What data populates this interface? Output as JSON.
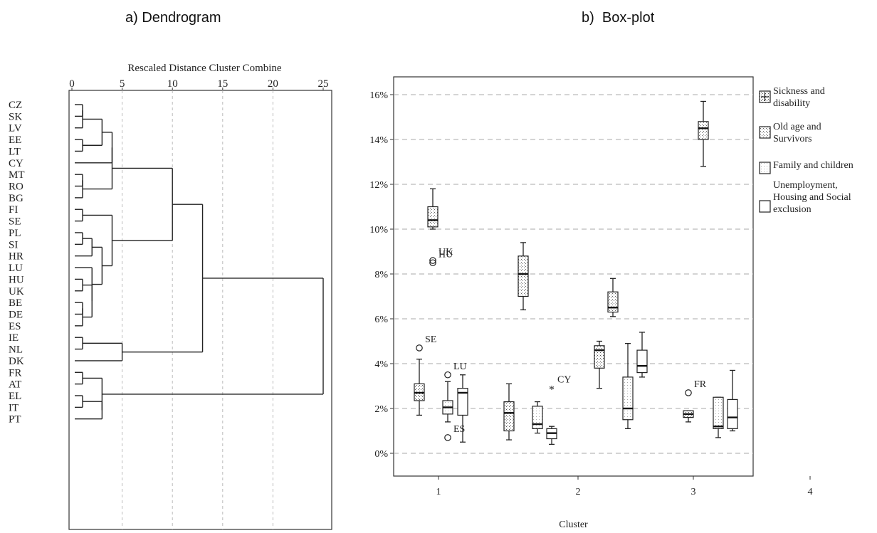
{
  "panels": {
    "a_title": "a) Dendrogram",
    "b_title": "b)  Box-plot"
  },
  "chart_data": [
    {
      "type": "dendrogram",
      "title": "a) Dendrogram",
      "axis_title": "Rescaled Distance Cluster Combine",
      "ticks": [
        "0",
        "5",
        "10",
        "15",
        "20",
        "25"
      ],
      "tick_values": [
        0,
        5,
        10,
        15,
        20,
        25
      ],
      "xlim": [
        0,
        25
      ],
      "grid": true,
      "leaves": [
        "CZ",
        "SK",
        "LV",
        "EE",
        "LT",
        "CY",
        "MT",
        "RO",
        "BG",
        "FI",
        "SE",
        "PL",
        "SI",
        "HR",
        "LU",
        "HU",
        "UK",
        "BE",
        "DE",
        "ES",
        "IE",
        "NL",
        "DK",
        "FR",
        "AT",
        "EL",
        "IT",
        "PT"
      ],
      "merges": [
        {
          "a": "CZ",
          "b": "SK",
          "h": 1.0
        },
        {
          "a": "EE",
          "b": "LT",
          "h": 1.0
        },
        {
          "a": "MT",
          "b": "RO",
          "h": 1.0
        },
        {
          "a": "FI",
          "b": "SE",
          "h": 1.0
        },
        {
          "a": "PL",
          "b": "SI",
          "h": 1.0
        },
        {
          "a": "HU",
          "b": "UK",
          "h": 1.0
        },
        {
          "a": "BE",
          "b": "DE",
          "h": 1.0
        },
        {
          "a": "IE",
          "b": "NL",
          "h": 1.0
        },
        {
          "a": "FR",
          "b": "AT",
          "h": 1.0
        },
        {
          "a": "EL",
          "b": "IT",
          "h": 1.0
        },
        {
          "a": "CZ+SK",
          "b": "LV",
          "h": 1.0
        },
        {
          "a": "MT+RO",
          "b": "BG",
          "h": 1.0
        },
        {
          "a": "PL+SI",
          "b": "HR",
          "h": 2.0
        },
        {
          "a": "BE+DE",
          "b": "ES",
          "h": 1.0
        },
        {
          "a": "HU+UK",
          "b": "BE+DE+ES",
          "h": 2.0
        },
        {
          "a": "LU",
          "b": "HU+UK+BE+DE+ES",
          "h": 2.0
        },
        {
          "a": "CZ+SK+LV",
          "b": "EE+LT",
          "h": 3.0
        },
        {
          "a": "PL+SI+HR",
          "b": "LU+HU+UK+BE+DE+ES",
          "h": 3.0
        },
        {
          "a": "EL+IT",
          "b": "PT",
          "h": 3.0
        },
        {
          "a": "FR+AT",
          "b": "EL+IT+PT",
          "h": 3.0
        },
        {
          "a": "CZ+SK+LV+EE+LT",
          "b": "CY",
          "h": 4.0
        },
        {
          "a": "CZ+SK+LV+EE+LT+CY",
          "b": "MT+RO+BG",
          "h": 4.0
        },
        {
          "a": "FI+SE",
          "b": "PL+SI+HR+LU+HU+UK+BE+DE+ES",
          "h": 4.0
        },
        {
          "a": "IE+NL",
          "b": "DK",
          "h": 5.0
        },
        {
          "a": "CZ..BG",
          "b": "FI..ES",
          "h": 10.0
        },
        {
          "a": "CZ..ES",
          "b": "IE+NL+DK",
          "h": 13.0
        },
        {
          "a": "CZ..DK",
          "b": "FR..PT",
          "h": 25.0
        }
      ]
    },
    {
      "type": "box",
      "title": "b)  Box-plot",
      "xlabel": "Cluster",
      "ylabel": "",
      "categories": [
        "1",
        "2",
        "3",
        "4"
      ],
      "ylim": [
        -0.8,
        16.9
      ],
      "yticks": [
        "0%",
        "2%",
        "4%",
        "6%",
        "8%",
        "10%",
        "12%",
        "14%",
        "16%"
      ],
      "ytick_values": [
        0,
        2,
        4,
        6,
        8,
        10,
        12,
        14,
        16
      ],
      "grid": true,
      "legend_position": "right",
      "series": [
        {
          "name": "Sickness and disability",
          "pattern": "cross",
          "boxes": [
            {
              "cluster": "1",
              "min": 1.7,
              "q1": 2.35,
              "median": 2.7,
              "q3": 3.1,
              "max": 4.2
            },
            {
              "cluster": "2",
              "min": 0.6,
              "q1": 1.0,
              "median": 1.8,
              "q3": 2.3,
              "max": 3.1
            },
            {
              "cluster": "3",
              "min": 2.9,
              "q1": 3.8,
              "median": 4.6,
              "q3": 4.8,
              "max": 5.0
            },
            {
              "cluster": "4",
              "min": 1.4,
              "q1": 1.6,
              "median": 1.75,
              "q3": 1.9,
              "max": 1.9
            }
          ]
        },
        {
          "name": "Old age and Survivors",
          "pattern": "dots-dense",
          "boxes": [
            {
              "cluster": "1",
              "min": 10.0,
              "q1": 10.1,
              "median": 10.4,
              "q3": 11.0,
              "max": 11.8
            },
            {
              "cluster": "2",
              "min": 6.4,
              "q1": 7.0,
              "median": 8.0,
              "q3": 8.8,
              "max": 9.4
            },
            {
              "cluster": "3",
              "min": 6.1,
              "q1": 6.3,
              "median": 6.5,
              "q3": 7.2,
              "max": 7.8
            },
            {
              "cluster": "4",
              "min": 12.8,
              "q1": 14.0,
              "median": 14.5,
              "q3": 14.8,
              "max": 15.7
            }
          ]
        },
        {
          "name": "Family and children",
          "pattern": "dots-sparse",
          "boxes": [
            {
              "cluster": "1",
              "min": 1.4,
              "q1": 1.75,
              "median": 2.05,
              "q3": 2.35,
              "max": 3.2
            },
            {
              "cluster": "2",
              "min": 0.9,
              "q1": 1.1,
              "median": 1.3,
              "q3": 2.1,
              "max": 2.3
            },
            {
              "cluster": "3",
              "min": 1.1,
              "q1": 1.5,
              "median": 2.0,
              "q3": 3.4,
              "max": 4.9
            },
            {
              "cluster": "4",
              "min": 0.7,
              "q1": 1.1,
              "median": 1.2,
              "q3": 2.5,
              "max": 2.5
            }
          ]
        },
        {
          "name": "Unemployment, Housing and Social exclusion",
          "pattern": "none",
          "boxes": [
            {
              "cluster": "1",
              "min": 0.5,
              "q1": 1.7,
              "median": 2.7,
              "q3": 2.9,
              "max": 3.5
            },
            {
              "cluster": "2",
              "min": 0.4,
              "q1": 0.65,
              "median": 0.9,
              "q3": 1.1,
              "max": 1.2
            },
            {
              "cluster": "3",
              "min": 3.4,
              "q1": 3.6,
              "median": 3.9,
              "q3": 4.6,
              "max": 5.4
            },
            {
              "cluster": "4",
              "min": 1.0,
              "q1": 1.1,
              "median": 1.6,
              "q3": 2.4,
              "max": 3.7
            }
          ]
        }
      ],
      "outliers": [
        {
          "cluster": "1",
          "series": 0,
          "value": 4.7,
          "label": "SE",
          "marker": "circle"
        },
        {
          "cluster": "1",
          "series": 1,
          "value": 8.6,
          "label": "UK",
          "marker": "circle"
        },
        {
          "cluster": "1",
          "series": 1,
          "value": 8.5,
          "label": "HU",
          "marker": "circle"
        },
        {
          "cluster": "1",
          "series": 2,
          "value": 3.5,
          "label": "LU",
          "marker": "circle"
        },
        {
          "cluster": "1",
          "series": 2,
          "value": 0.7,
          "label": "ES",
          "marker": "circle"
        },
        {
          "cluster": "2",
          "series": 3,
          "value": 2.9,
          "label": "CY",
          "marker": "star"
        },
        {
          "cluster": "4",
          "series": 0,
          "value": 2.7,
          "label": "FR",
          "marker": "circle"
        }
      ]
    }
  ]
}
